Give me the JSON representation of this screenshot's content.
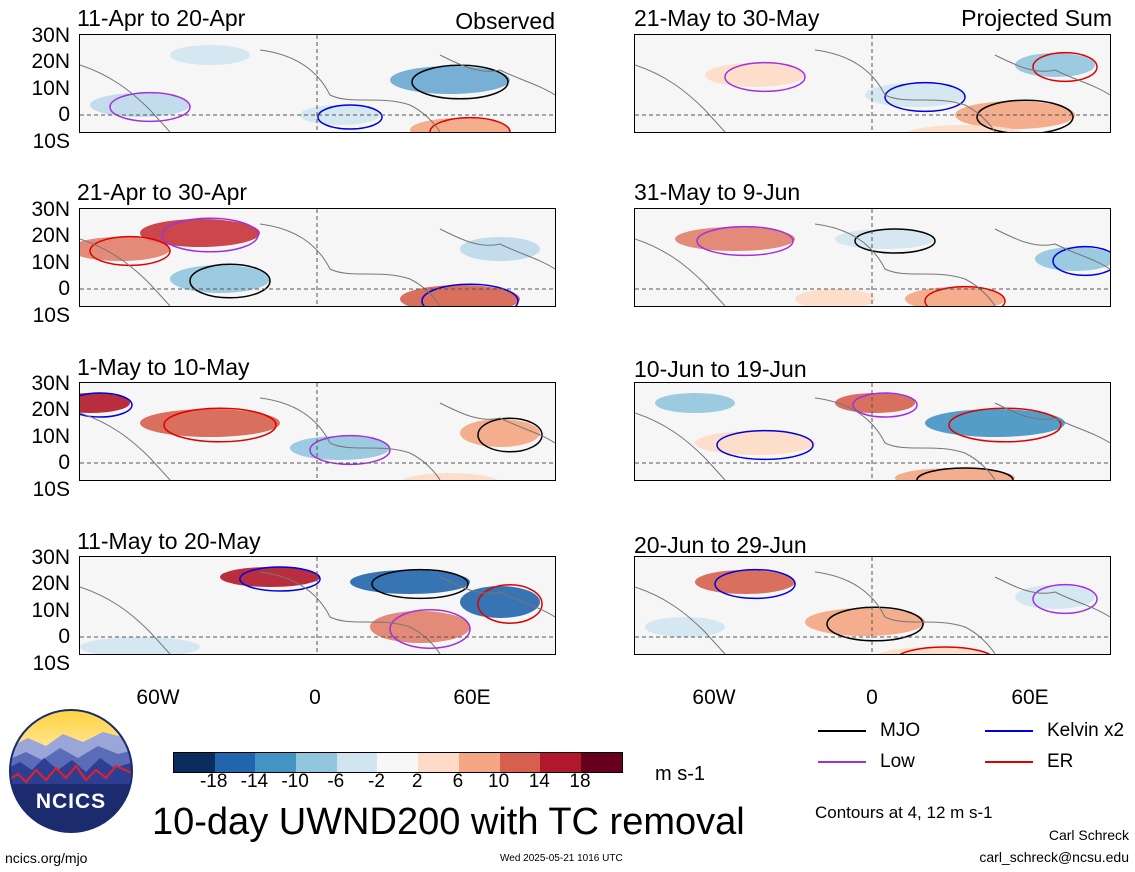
{
  "panels_left": [
    {
      "title": "11-Apr to 20-Apr",
      "label": "Observed"
    },
    {
      "title": "21-Apr to 30-Apr",
      "label": ""
    },
    {
      "title": "1-May to 10-May",
      "label": ""
    },
    {
      "title": "11-May to 20-May",
      "label": ""
    }
  ],
  "panels_right": [
    {
      "title": "21-May to 30-May",
      "label": "Projected Sum"
    },
    {
      "title": "31-May to 9-Jun",
      "label": ""
    },
    {
      "title": "10-Jun to 19-Jun",
      "label": ""
    },
    {
      "title": "20-Jun to 29-Jun",
      "label": ""
    }
  ],
  "lat_labels": [
    "30N",
    "20N",
    "10N",
    "0",
    "10S"
  ],
  "lon_labels": [
    "60W",
    "0",
    "60E"
  ],
  "colorbar": {
    "colors": [
      "#0a2c5e",
      "#2166ac",
      "#4393c3",
      "#92c5de",
      "#d1e5f0",
      "#f7f7f7",
      "#fddbc7",
      "#f4a582",
      "#d6604d",
      "#b2182b",
      "#67001f"
    ],
    "ticks": [
      "-18",
      "-14",
      "-10",
      "-6",
      "-2",
      "2",
      "6",
      "10",
      "14",
      "18"
    ],
    "unit": "m s-1"
  },
  "legend": {
    "mjo": {
      "label": "MJO",
      "color": "#000000"
    },
    "kelvin": {
      "label": "Kelvin x2",
      "color": "#0000dd"
    },
    "low": {
      "label": "Low",
      "color": "#a030e0"
    },
    "er": {
      "label": "ER",
      "color": "#e00000"
    }
  },
  "contours_note": "Contours at 4, 12 m s-1",
  "main_title": "10-day UWND200 with TC removal",
  "logo_text": "NCICS",
  "author": "Carl Schreck",
  "email": "carl_schreck@ncsu.edu",
  "website": "ncics.org/mjo",
  "timestamp": "Wed 2025-05-21 1016 UTC"
}
